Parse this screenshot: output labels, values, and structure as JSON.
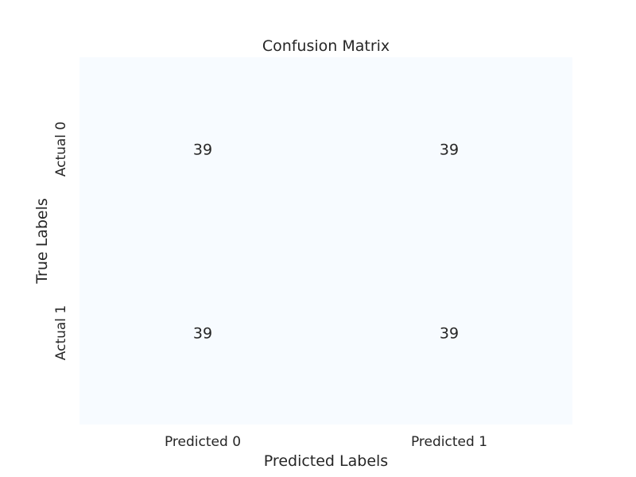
{
  "chart_data": {
    "type": "heatmap",
    "title": "Confusion Matrix",
    "xlabel": "Predicted Labels",
    "ylabel": "True Labels",
    "x_categories": [
      "Predicted 0",
      "Predicted 1"
    ],
    "y_categories": [
      "Actual 0",
      "Actual 1"
    ],
    "values": [
      [
        39,
        39
      ],
      [
        39,
        39
      ]
    ],
    "cell_color": "#f7fbff",
    "annotations": true,
    "colorbar": false,
    "grid": false
  }
}
